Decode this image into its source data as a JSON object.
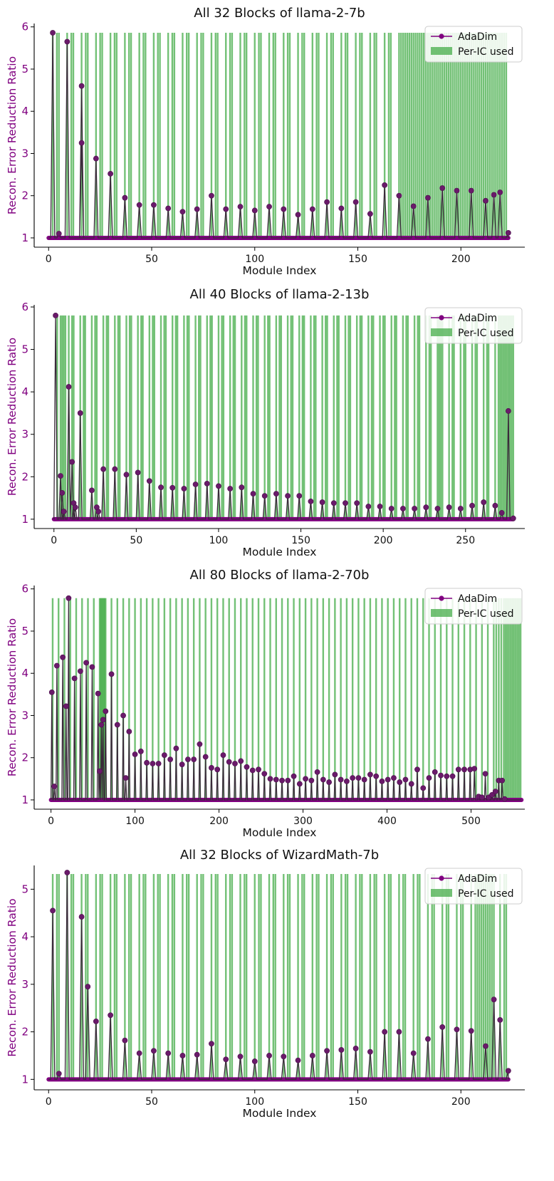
{
  "colors": {
    "adadim": "#800080",
    "adadim_line": "#3a2a3a",
    "per_ic": "#4caf50",
    "axis": "#000000"
  },
  "chart_data": [
    {
      "type": "line",
      "title": "All 32 Blocks of llama-2-7b",
      "xlabel": "Module Index",
      "ylabel": "Recon. Error Reduction Ratio",
      "xlim": [
        -7,
        231
      ],
      "ylim": [
        0.78,
        6.08
      ],
      "xticks": [
        0,
        50,
        100,
        150,
        200
      ],
      "yticks": [
        1,
        2,
        3,
        4,
        5,
        6
      ],
      "legend": {
        "position": "top-right",
        "entries": [
          "AdaDim",
          "Per-IC used"
        ]
      },
      "per_ic_height": 5.86,
      "per_ic_used": [
        2,
        4,
        5,
        9,
        11,
        12,
        16,
        18,
        19,
        23,
        25,
        26,
        30,
        32,
        33,
        37,
        39,
        40,
        44,
        46,
        47,
        51,
        53,
        54,
        58,
        60,
        61,
        65,
        67,
        68,
        72,
        74,
        75,
        79,
        81,
        82,
        86,
        88,
        89,
        93,
        95,
        96,
        100,
        102,
        103,
        107,
        109,
        110,
        114,
        116,
        117,
        121,
        123,
        124,
        128,
        130,
        131,
        135,
        137,
        138,
        142,
        144,
        145,
        149,
        151,
        152,
        156,
        158,
        159,
        163,
        165,
        166,
        170,
        171,
        172,
        173,
        174,
        175,
        176,
        177,
        178,
        179,
        180,
        181,
        182,
        183,
        184,
        185,
        186,
        187,
        188,
        189,
        190,
        191,
        192,
        193,
        194,
        195,
        196,
        197,
        198,
        199,
        200,
        201,
        202,
        203,
        204,
        205,
        206,
        207,
        208,
        209,
        210,
        211,
        212,
        213,
        214,
        215,
        216,
        217,
        218,
        219,
        220,
        221,
        222
      ],
      "peaks": [
        [
          2,
          5.86
        ],
        [
          5,
          1.1
        ],
        [
          9,
          5.65
        ],
        [
          16,
          4.6
        ],
        [
          16,
          3.25
        ],
        [
          23,
          2.88
        ],
        [
          30,
          2.52
        ],
        [
          37,
          1.95
        ],
        [
          44,
          1.78
        ],
        [
          51,
          1.78
        ],
        [
          58,
          1.7
        ],
        [
          65,
          1.62
        ],
        [
          72,
          1.68
        ],
        [
          79,
          2.0
        ],
        [
          86,
          1.68
        ],
        [
          93,
          1.74
        ],
        [
          100,
          1.65
        ],
        [
          107,
          1.74
        ],
        [
          114,
          1.68
        ],
        [
          121,
          1.55
        ],
        [
          128,
          1.68
        ],
        [
          135,
          1.85
        ],
        [
          142,
          1.7
        ],
        [
          149,
          1.85
        ],
        [
          156,
          1.57
        ],
        [
          163,
          2.25
        ],
        [
          170,
          2.0
        ],
        [
          177,
          1.75
        ],
        [
          184,
          1.95
        ],
        [
          191,
          2.18
        ],
        [
          198,
          2.12
        ],
        [
          205,
          2.12
        ],
        [
          212,
          1.88
        ],
        [
          216,
          2.02
        ],
        [
          219,
          2.08
        ],
        [
          223,
          1.12
        ]
      ],
      "x_max": 223
    },
    {
      "type": "line",
      "title": "All 40 Blocks of llama-2-13b",
      "xlabel": "Module Index",
      "ylabel": "Recon. Error Reduction Ratio",
      "xlim": [
        -12,
        286
      ],
      "ylim": [
        0.78,
        6.05
      ],
      "xticks": [
        0,
        50,
        100,
        150,
        200,
        250
      ],
      "yticks": [
        1,
        2,
        3,
        4,
        5,
        6
      ],
      "legend": {
        "position": "top-right",
        "entries": [
          "AdaDim",
          "Per-IC used"
        ]
      },
      "per_ic_height": 5.8,
      "per_ic_used": [
        2,
        4,
        5,
        6,
        7,
        9,
        11,
        12,
        16,
        18,
        19,
        23,
        25,
        26,
        30,
        32,
        33,
        37,
        39,
        40,
        44,
        46,
        47,
        51,
        53,
        54,
        58,
        60,
        61,
        65,
        67,
        68,
        72,
        74,
        75,
        79,
        81,
        82,
        86,
        88,
        89,
        93,
        95,
        96,
        100,
        102,
        103,
        107,
        109,
        110,
        114,
        116,
        117,
        121,
        123,
        124,
        128,
        130,
        131,
        135,
        137,
        138,
        142,
        144,
        145,
        149,
        151,
        152,
        156,
        158,
        159,
        163,
        165,
        166,
        170,
        172,
        173,
        177,
        179,
        180,
        184,
        186,
        187,
        191,
        193,
        194,
        198,
        200,
        201,
        205,
        207,
        208,
        212,
        214,
        215,
        219,
        221,
        222,
        226,
        228,
        229,
        233,
        234,
        235,
        236,
        240,
        242,
        243,
        247,
        249,
        250,
        254,
        256,
        257,
        261,
        263,
        264,
        268,
        270,
        271,
        272,
        273,
        274,
        275,
        276,
        277,
        278,
        279
      ],
      "peaks": [
        [
          1,
          5.8
        ],
        [
          4,
          2.02
        ],
        [
          5,
          1.62
        ],
        [
          6,
          1.18
        ],
        [
          9,
          4.12
        ],
        [
          11,
          2.35
        ],
        [
          12,
          1.38
        ],
        [
          13,
          1.28
        ],
        [
          16,
          3.5
        ],
        [
          23,
          1.68
        ],
        [
          26,
          1.28
        ],
        [
          27,
          1.18
        ],
        [
          30,
          2.18
        ],
        [
          37,
          2.18
        ],
        [
          44,
          2.05
        ],
        [
          51,
          2.1
        ],
        [
          58,
          1.9
        ],
        [
          65,
          1.75
        ],
        [
          72,
          1.74
        ],
        [
          79,
          1.72
        ],
        [
          86,
          1.82
        ],
        [
          93,
          1.84
        ],
        [
          100,
          1.78
        ],
        [
          107,
          1.72
        ],
        [
          114,
          1.75
        ],
        [
          121,
          1.6
        ],
        [
          128,
          1.55
        ],
        [
          135,
          1.6
        ],
        [
          142,
          1.55
        ],
        [
          149,
          1.55
        ],
        [
          156,
          1.42
        ],
        [
          163,
          1.4
        ],
        [
          170,
          1.38
        ],
        [
          177,
          1.38
        ],
        [
          184,
          1.38
        ],
        [
          191,
          1.3
        ],
        [
          198,
          1.3
        ],
        [
          205,
          1.25
        ],
        [
          212,
          1.25
        ],
        [
          219,
          1.25
        ],
        [
          226,
          1.28
        ],
        [
          233,
          1.25
        ],
        [
          240,
          1.28
        ],
        [
          247,
          1.25
        ],
        [
          254,
          1.32
        ],
        [
          261,
          1.4
        ],
        [
          268,
          1.32
        ],
        [
          272,
          1.15
        ],
        [
          276,
          3.55
        ],
        [
          279,
          1.02
        ]
      ],
      "x_max": 279
    },
    {
      "type": "line",
      "title": "All 80 Blocks of llama-2-70b",
      "xlabel": "Module Index",
      "ylabel": "Recon. Error Reduction Ratio",
      "xlim": [
        -20,
        564
      ],
      "ylim": [
        0.78,
        6.08
      ],
      "xticks": [
        0,
        100,
        200,
        300,
        400,
        500
      ],
      "yticks": [
        1,
        2,
        3,
        4,
        5,
        6
      ],
      "legend": {
        "position": "top-right",
        "entries": [
          "AdaDim",
          "Per-IC used"
        ]
      },
      "per_ic_height": 5.78,
      "per_ic_used": [
        2,
        9,
        16,
        23,
        30,
        37,
        44,
        51,
        58,
        59,
        60,
        61,
        62,
        63,
        64,
        65,
        72,
        79,
        86,
        93,
        100,
        107,
        114,
        121,
        128,
        135,
        142,
        149,
        156,
        163,
        170,
        177,
        184,
        191,
        198,
        205,
        212,
        219,
        226,
        233,
        240,
        247,
        254,
        261,
        268,
        275,
        282,
        289,
        296,
        303,
        310,
        317,
        324,
        331,
        338,
        345,
        352,
        359,
        366,
        373,
        380,
        387,
        394,
        401,
        408,
        415,
        422,
        429,
        436,
        443,
        450,
        457,
        464,
        471,
        478,
        485,
        492,
        499,
        506,
        513,
        520,
        527,
        530,
        533,
        536,
        539,
        541,
        543,
        545,
        547,
        549,
        551,
        553,
        555,
        557,
        559
      ],
      "peaks": [
        [
          1,
          3.55
        ],
        [
          4,
          1.32
        ],
        [
          7,
          4.18
        ],
        [
          14,
          4.38
        ],
        [
          18,
          3.22
        ],
        [
          21,
          5.78
        ],
        [
          28,
          3.88
        ],
        [
          35,
          4.05
        ],
        [
          42,
          4.25
        ],
        [
          49,
          4.15
        ],
        [
          56,
          3.52
        ],
        [
          58,
          1.68
        ],
        [
          60,
          2.78
        ],
        [
          62,
          2.9
        ],
        [
          65,
          3.1
        ],
        [
          72,
          3.98
        ],
        [
          79,
          2.78
        ],
        [
          86,
          3.0
        ],
        [
          89,
          1.52
        ],
        [
          93,
          2.62
        ],
        [
          100,
          2.08
        ],
        [
          107,
          2.15
        ],
        [
          114,
          1.88
        ],
        [
          121,
          1.86
        ],
        [
          128,
          1.86
        ],
        [
          135,
          2.06
        ],
        [
          142,
          1.96
        ],
        [
          149,
          2.22
        ],
        [
          156,
          1.84
        ],
        [
          163,
          1.96
        ],
        [
          170,
          1.96
        ],
        [
          177,
          2.32
        ],
        [
          184,
          2.02
        ],
        [
          191,
          1.76
        ],
        [
          198,
          1.72
        ],
        [
          205,
          2.06
        ],
        [
          212,
          1.9
        ],
        [
          219,
          1.86
        ],
        [
          226,
          1.92
        ],
        [
          233,
          1.78
        ],
        [
          240,
          1.7
        ],
        [
          247,
          1.72
        ],
        [
          254,
          1.62
        ],
        [
          261,
          1.5
        ],
        [
          268,
          1.48
        ],
        [
          275,
          1.46
        ],
        [
          282,
          1.46
        ],
        [
          289,
          1.56
        ],
        [
          296,
          1.38
        ],
        [
          303,
          1.5
        ],
        [
          310,
          1.46
        ],
        [
          317,
          1.66
        ],
        [
          324,
          1.48
        ],
        [
          331,
          1.42
        ],
        [
          338,
          1.6
        ],
        [
          345,
          1.48
        ],
        [
          352,
          1.44
        ],
        [
          359,
          1.52
        ],
        [
          366,
          1.52
        ],
        [
          373,
          1.48
        ],
        [
          380,
          1.6
        ],
        [
          387,
          1.56
        ],
        [
          394,
          1.44
        ],
        [
          401,
          1.48
        ],
        [
          408,
          1.52
        ],
        [
          415,
          1.42
        ],
        [
          422,
          1.48
        ],
        [
          429,
          1.38
        ],
        [
          436,
          1.72
        ],
        [
          443,
          1.28
        ],
        [
          450,
          1.52
        ],
        [
          457,
          1.66
        ],
        [
          464,
          1.58
        ],
        [
          471,
          1.56
        ],
        [
          478,
          1.56
        ],
        [
          485,
          1.72
        ],
        [
          492,
          1.72
        ],
        [
          499,
          1.72
        ],
        [
          504,
          1.74
        ],
        [
          509,
          1.08
        ],
        [
          513,
          1.06
        ],
        [
          517,
          1.62
        ],
        [
          521,
          1.06
        ],
        [
          525,
          1.12
        ],
        [
          529,
          1.2
        ],
        [
          533,
          1.46
        ],
        [
          537,
          1.46
        ],
        [
          540,
          1.02
        ]
      ],
      "x_max": 560
    },
    {
      "type": "line",
      "title": "All 32 Blocks of WizardMath-7b",
      "xlabel": "Module Index",
      "ylabel": "Recon. Error Reduction Ratio",
      "xlim": [
        -7,
        231
      ],
      "ylim": [
        0.78,
        5.5
      ],
      "xticks": [
        0,
        50,
        100,
        150,
        200
      ],
      "yticks": [
        1,
        2,
        3,
        4,
        5
      ],
      "legend": {
        "position": "top-right",
        "entries": [
          "AdaDim",
          "Per-IC used"
        ]
      },
      "per_ic_height": 5.32,
      "per_ic_used": [
        2,
        4,
        5,
        9,
        11,
        12,
        16,
        18,
        19,
        23,
        25,
        26,
        30,
        32,
        33,
        37,
        39,
        40,
        44,
        46,
        47,
        51,
        53,
        54,
        58,
        60,
        61,
        65,
        67,
        68,
        72,
        74,
        75,
        79,
        81,
        82,
        86,
        88,
        89,
        93,
        95,
        96,
        100,
        102,
        103,
        107,
        109,
        110,
        114,
        116,
        117,
        121,
        123,
        124,
        128,
        130,
        131,
        135,
        137,
        138,
        142,
        144,
        145,
        149,
        151,
        152,
        156,
        158,
        159,
        163,
        165,
        166,
        170,
        172,
        173,
        177,
        179,
        180,
        184,
        186,
        187,
        191,
        193,
        194,
        198,
        200,
        201,
        205,
        207,
        208,
        209,
        210,
        211,
        212,
        213,
        214,
        215,
        216,
        219,
        221,
        222
      ],
      "peaks": [
        [
          2,
          4.55
        ],
        [
          5,
          1.12
        ],
        [
          9,
          5.35
        ],
        [
          16,
          4.42
        ],
        [
          19,
          2.95
        ],
        [
          23,
          2.22
        ],
        [
          30,
          2.35
        ],
        [
          37,
          1.82
        ],
        [
          44,
          1.55
        ],
        [
          51,
          1.6
        ],
        [
          58,
          1.55
        ],
        [
          65,
          1.5
        ],
        [
          72,
          1.52
        ],
        [
          79,
          1.75
        ],
        [
          86,
          1.42
        ],
        [
          93,
          1.48
        ],
        [
          100,
          1.38
        ],
        [
          107,
          1.5
        ],
        [
          114,
          1.48
        ],
        [
          121,
          1.4
        ],
        [
          128,
          1.5
        ],
        [
          135,
          1.6
        ],
        [
          142,
          1.62
        ],
        [
          149,
          1.65
        ],
        [
          156,
          1.58
        ],
        [
          163,
          2.0
        ],
        [
          170,
          2.0
        ],
        [
          177,
          1.55
        ],
        [
          184,
          1.85
        ],
        [
          191,
          2.1
        ],
        [
          198,
          2.05
        ],
        [
          205,
          2.02
        ],
        [
          212,
          1.7
        ],
        [
          216,
          2.68
        ],
        [
          219,
          2.25
        ],
        [
          223,
          1.18
        ]
      ],
      "x_max": 223
    }
  ]
}
